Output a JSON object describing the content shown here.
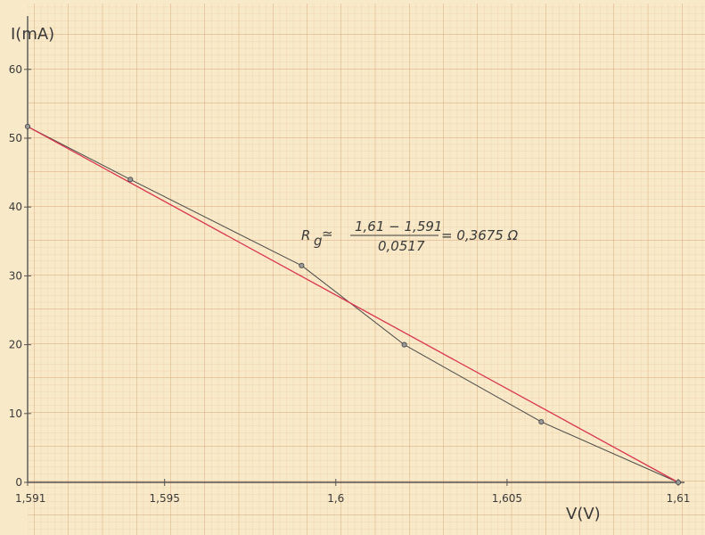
{
  "chart_data": {
    "type": "line",
    "xlabel": "V(V)",
    "ylabel": "I(mA)",
    "xlim": [
      1.591,
      1.61
    ],
    "ylim": [
      0,
      65
    ],
    "x_ticks": [
      1.591,
      1.595,
      1.6,
      1.605,
      1.61
    ],
    "x_tick_labels": [
      "1,591",
      "1,595",
      "1,6",
      "1,605",
      "1,61"
    ],
    "y_ticks": [
      0,
      10,
      20,
      30,
      40,
      50,
      60
    ],
    "y_tick_labels": [
      "0",
      "10",
      "20",
      "30",
      "40",
      "50",
      "60"
    ],
    "grid": true,
    "series": [
      {
        "color": "#4a4a4a",
        "marker": "circle",
        "x": [
          1.591,
          1.594,
          1.599,
          1.602,
          1.606,
          1.61
        ],
        "y": [
          51.7,
          44.0,
          31.5,
          20.0,
          8.8,
          0.0
        ]
      },
      {
        "color": "#d8344f",
        "marker": "none",
        "x": [
          1.591,
          1.61
        ],
        "y": [
          51.7,
          0.0
        ]
      }
    ],
    "annotation": {
      "lhs": "R",
      "sub": "g",
      "approx": "≃",
      "numerator": "1,61 − 1,591",
      "denominator": "0,0517",
      "result": "= 0,3675 Ω"
    }
  }
}
